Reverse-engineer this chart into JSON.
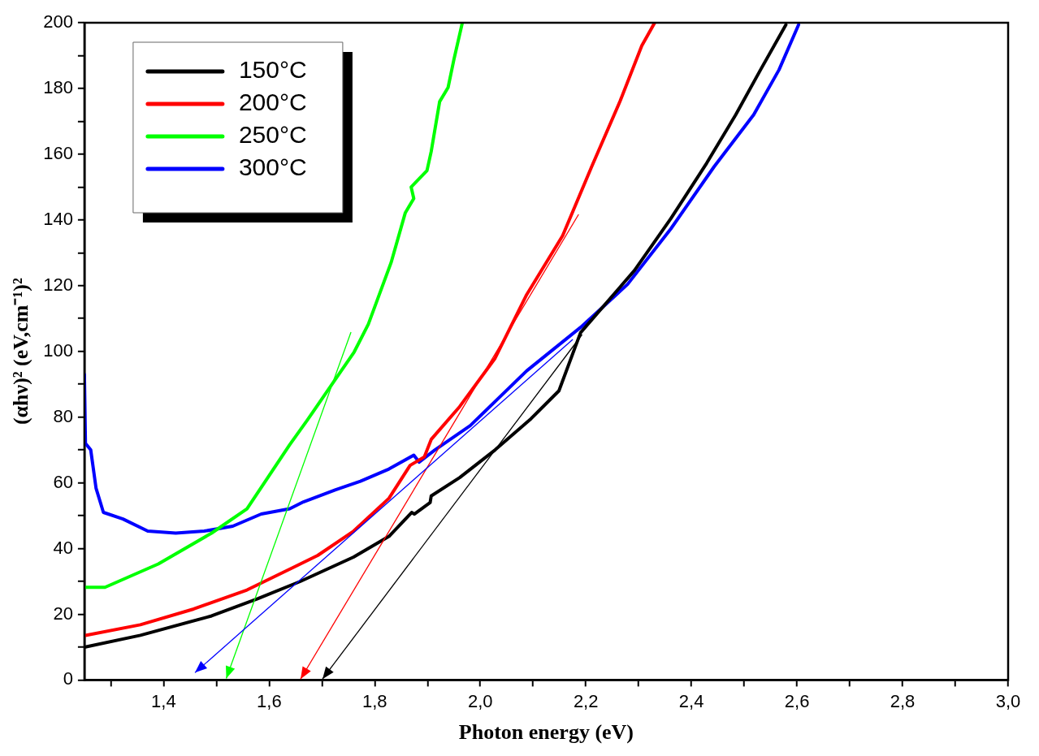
{
  "chart_data": {
    "type": "line",
    "xlabel": "Photon energy (eV)",
    "ylabel": "(αhν)² (eV,cm⁻¹)²",
    "xlim": [
      1.25,
      3.0
    ],
    "ylim": [
      0,
      200
    ],
    "xticks": [
      {
        "value": 1.3,
        "label": null
      },
      {
        "value": 1.4,
        "label": "1,4"
      },
      {
        "value": 1.5,
        "label": null
      },
      {
        "value": 1.6,
        "label": "1,6"
      },
      {
        "value": 1.7,
        "label": null
      },
      {
        "value": 1.8,
        "label": "1,8"
      },
      {
        "value": 1.9,
        "label": null
      },
      {
        "value": 2.0,
        "label": "2,0"
      },
      {
        "value": 2.1,
        "label": null
      },
      {
        "value": 2.2,
        "label": "2,2"
      },
      {
        "value": 2.3,
        "label": null
      },
      {
        "value": 2.4,
        "label": "2,4"
      },
      {
        "value": 2.5,
        "label": null
      },
      {
        "value": 2.6,
        "label": "2,6"
      },
      {
        "value": 2.7,
        "label": null
      },
      {
        "value": 2.8,
        "label": "2,8"
      },
      {
        "value": 2.9,
        "label": null
      },
      {
        "value": 3.0,
        "label": "3,0"
      }
    ],
    "yticks": [
      0,
      {
        "value": 10,
        "label": null
      },
      20,
      {
        "value": 30,
        "label": null
      },
      40,
      {
        "value": 50,
        "label": null
      },
      60,
      {
        "value": 70,
        "label": null
      },
      80,
      {
        "value": 90,
        "label": null
      },
      100,
      {
        "value": 110,
        "label": null
      },
      120,
      {
        "value": 130,
        "label": null
      },
      140,
      {
        "value": 150,
        "label": null
      },
      160,
      {
        "value": 170,
        "label": null
      },
      180,
      {
        "value": 190,
        "label": null
      },
      200
    ],
    "grid": false,
    "legend": "top left",
    "marker": "none",
    "line_style": "solid",
    "series": [
      {
        "name": "150°C",
        "color": "#000000",
        "x": [
          1.25,
          1.356,
          1.491,
          1.578,
          1.659,
          1.76,
          1.827,
          1.87,
          1.875,
          1.905,
          1.907,
          1.961,
          2.028,
          2.096,
          2.149,
          2.19,
          2.292,
          2.361,
          2.429,
          2.484,
          2.531,
          2.579
        ],
        "values": [
          10,
          13.6,
          19.5,
          24.7,
          30,
          37.4,
          43.7,
          51,
          50.5,
          54,
          56,
          61.6,
          70,
          79.5,
          88,
          105.7,
          124.6,
          140.4,
          157.3,
          172,
          185.7,
          199.4
        ]
      },
      {
        "name": "200°C",
        "color": "#ff0000",
        "x": [
          1.25,
          1.356,
          1.457,
          1.558,
          1.645,
          1.692,
          1.76,
          1.827,
          1.867,
          1.894,
          1.907,
          1.961,
          2.028,
          2.088,
          2.156,
          2.211,
          2.265,
          2.306,
          2.33
        ],
        "values": [
          13.5,
          16.8,
          21.6,
          27.4,
          34.2,
          37.9,
          45.3,
          55.3,
          65.3,
          67.9,
          73.2,
          83.2,
          97.9,
          117.3,
          135.2,
          156.2,
          176.2,
          193,
          199.9
        ]
      },
      {
        "name": "250°C",
        "color": "#00ff00",
        "x": [
          1.25,
          1.289,
          1.39,
          1.491,
          1.558,
          1.639,
          1.672,
          1.726,
          1.761,
          1.788,
          1.831,
          1.858,
          1.874,
          1.869,
          1.899,
          1.907,
          1.923,
          1.939,
          1.95,
          1.966
        ],
        "values": [
          28.2,
          28.2,
          35.3,
          44.7,
          52.1,
          71.6,
          79,
          91.6,
          99.8,
          108.3,
          127,
          142.2,
          146.5,
          150,
          155,
          160.8,
          176,
          180.3,
          188.8,
          200
        ]
      },
      {
        "name": "300°C",
        "color": "#0000ff",
        "x": [
          1.25,
          1.252,
          1.262,
          1.272,
          1.286,
          1.323,
          1.37,
          1.423,
          1.477,
          1.531,
          1.585,
          1.639,
          1.665,
          1.726,
          1.773,
          1.827,
          1.874,
          1.884,
          1.914,
          1.981,
          2.088,
          2.19,
          2.279,
          2.361,
          2.443,
          2.518,
          2.566,
          2.603
        ],
        "values": [
          93,
          72,
          70,
          58.4,
          51,
          49,
          45.3,
          44.7,
          45.3,
          46.8,
          50.5,
          52.1,
          54.2,
          57.9,
          60.5,
          64.2,
          68.4,
          66.3,
          70,
          77.4,
          94.1,
          107.3,
          120.4,
          137.3,
          156.2,
          172,
          185.7,
          199.4
        ]
      }
    ]
  }
}
